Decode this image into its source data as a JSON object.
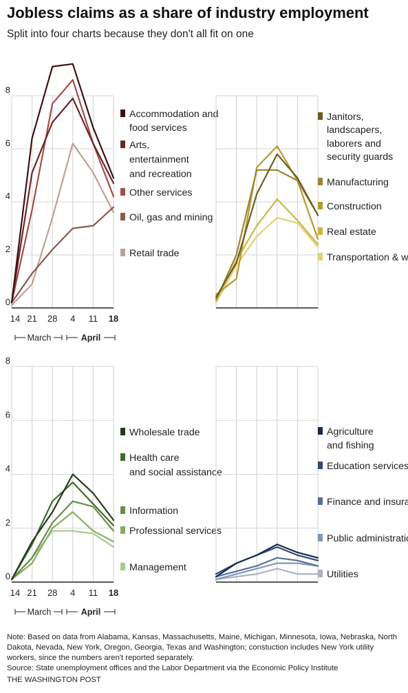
{
  "title": "Jobless claims as a share of industry employment",
  "subtitle": "Split into four charts because they don't all fit on one",
  "note": "Note: Based on data from Alabama, Kansas, Massachusetts, Maine, Michigan, Minnesota, Iowa, Nebraska, North Dakota, Nevada, New York, Oregon, Georgia, Texas and Washington; constuction includes New York utility workers, since the numbers aren't reported separately.",
  "source": "Source: State unemployment offices and the Labor Department via the Economic Policy Institute",
  "credit": "The Washington Post",
  "x_ticks": [
    "14",
    "21",
    "28",
    "4",
    "11",
    "18"
  ],
  "month_labels": [
    "March",
    "April"
  ],
  "y_ticks": [
    "0",
    "2",
    "4",
    "6",
    "8"
  ],
  "chart_data": [
    {
      "type": "line",
      "panel": "top-left",
      "x": [
        "14",
        "21",
        "28",
        "4",
        "11",
        "18"
      ],
      "ylim": [
        0,
        8
      ],
      "y_ticks": [
        0,
        2,
        4,
        6,
        8
      ],
      "series": [
        {
          "name": "Accommodation and food services",
          "color": "#3d1113",
          "values": [
            0.2,
            6.4,
            9.1,
            9.2,
            6.8,
            4.9
          ]
        },
        {
          "name": "Arts, entertainment and recreation",
          "color": "#6b2723",
          "values": [
            0.2,
            5.1,
            7.0,
            7.9,
            6.2,
            4.7
          ]
        },
        {
          "name": "Other services",
          "color": "#a24d46",
          "values": [
            0.2,
            3.7,
            7.7,
            8.6,
            6.2,
            4.2
          ]
        },
        {
          "name": "Oil, gas and mining",
          "color": "#8e564d",
          "values": [
            0.2,
            1.3,
            2.2,
            3.0,
            3.1,
            3.8
          ]
        },
        {
          "name": "Retail trade",
          "color": "#bfa097",
          "values": [
            0.1,
            0.9,
            3.4,
            6.2,
            5.1,
            3.6
          ]
        }
      ]
    },
    {
      "type": "line",
      "panel": "top-right",
      "x": [
        "14",
        "21",
        "28",
        "4",
        "11",
        "18"
      ],
      "ylim": [
        0,
        8
      ],
      "y_ticks": [
        0,
        2,
        4,
        6,
        8
      ],
      "series": [
        {
          "name": "Janitors, landscapers, laborers and security guards",
          "color": "#6e5e1e",
          "values": [
            0.4,
            1.7,
            4.3,
            5.8,
            4.9,
            3.5
          ]
        },
        {
          "name": "Manufacturing",
          "color": "#9a8530",
          "values": [
            0.3,
            2.0,
            5.2,
            5.2,
            4.8,
            3.5
          ]
        },
        {
          "name": "Construction",
          "color": "#b89a2c",
          "values": [
            0.5,
            1.1,
            5.3,
            6.1,
            4.8,
            2.6
          ]
        },
        {
          "name": "Real estate",
          "color": "#cfb540",
          "values": [
            0.3,
            1.8,
            3.1,
            4.1,
            3.3,
            2.4
          ]
        },
        {
          "name": "Transportation & warehousing",
          "color": "#e2cf72",
          "values": [
            0.2,
            1.6,
            2.7,
            3.4,
            3.2,
            2.3
          ]
        }
      ]
    },
    {
      "type": "line",
      "panel": "bottom-left",
      "x": [
        "14",
        "21",
        "28",
        "4",
        "11",
        "18"
      ],
      "ylim": [
        0,
        8
      ],
      "y_ticks": [
        0,
        2,
        4,
        6,
        8
      ],
      "series": [
        {
          "name": "Wholesale trade",
          "color": "#223b17",
          "values": [
            0.1,
            1.5,
            2.6,
            4.0,
            3.3,
            2.3
          ]
        },
        {
          "name": "Health care and social assistance",
          "color": "#3f6a2a",
          "values": [
            0.1,
            1.4,
            3.0,
            3.7,
            2.9,
            2.1
          ]
        },
        {
          "name": "Information",
          "color": "#678f47",
          "values": [
            0.1,
            0.9,
            2.2,
            3.0,
            2.8,
            1.9
          ]
        },
        {
          "name": "Professional services",
          "color": "#86ad65",
          "values": [
            0.1,
            0.7,
            2.0,
            2.6,
            1.9,
            1.5
          ]
        },
        {
          "name": "Management",
          "color": "#a9c98e",
          "values": [
            0.1,
            0.9,
            1.9,
            1.9,
            1.8,
            1.3
          ]
        }
      ]
    },
    {
      "type": "line",
      "panel": "bottom-right",
      "x": [
        "14",
        "21",
        "28",
        "4",
        "11",
        "18"
      ],
      "ylim": [
        0,
        8
      ],
      "y_ticks": [
        0,
        2,
        4,
        6,
        8
      ],
      "series": [
        {
          "name": "Agriculture and fishing",
          "color": "#162b4b",
          "values": [
            0.2,
            0.7,
            1.0,
            1.4,
            1.1,
            0.9
          ]
        },
        {
          "name": "Education services",
          "color": "#2f4a75",
          "values": [
            0.3,
            0.7,
            1.0,
            1.3,
            1.0,
            0.8
          ]
        },
        {
          "name": "Finance and insurance",
          "color": "#566f9b",
          "values": [
            0.2,
            0.4,
            0.6,
            0.9,
            0.8,
            0.6
          ]
        },
        {
          "name": "Public administration",
          "color": "#8296b7",
          "values": [
            0.1,
            0.3,
            0.5,
            0.7,
            0.7,
            0.6
          ]
        },
        {
          "name": "Utilities",
          "color": "#a9b3c6",
          "values": [
            0.1,
            0.2,
            0.3,
            0.5,
            0.3,
            0.3
          ]
        }
      ]
    }
  ]
}
